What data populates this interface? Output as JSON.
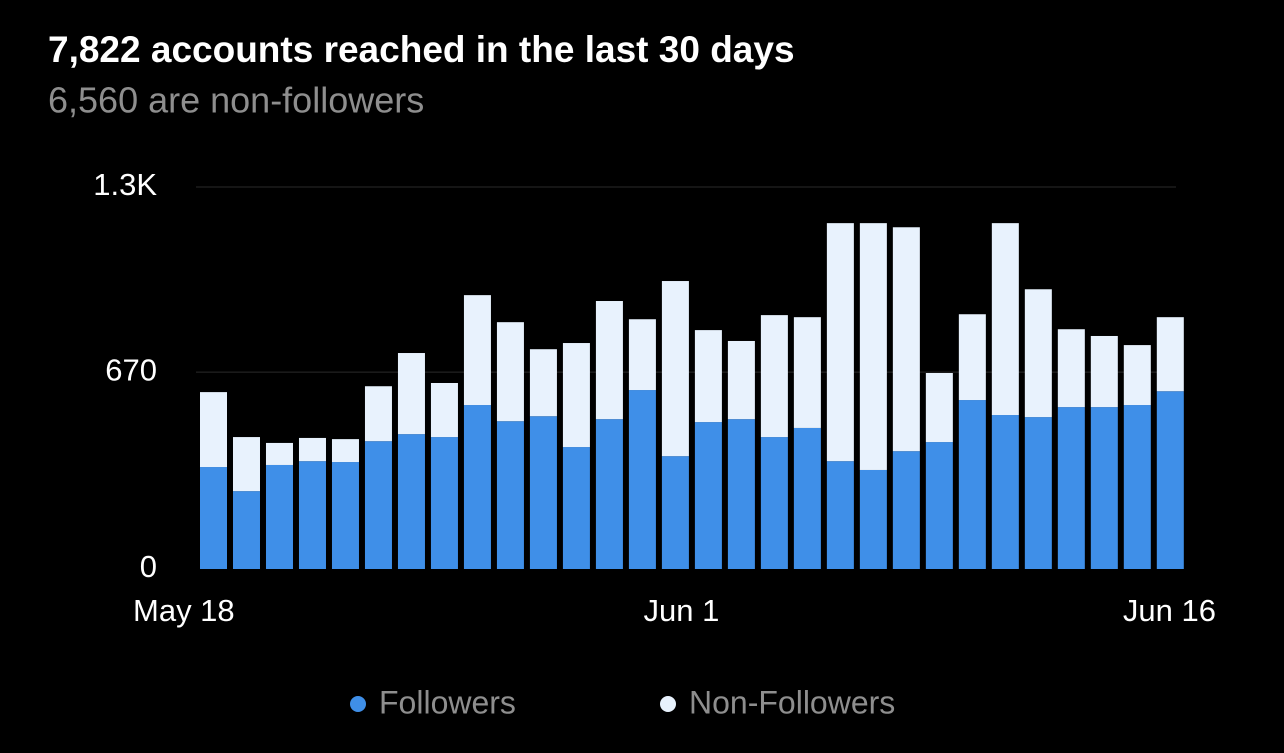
{
  "chart_data": {
    "type": "stacked_bar",
    "title": "7,822 accounts reached in the last 30 days",
    "subtitle": "6,560 are non-followers",
    "categories": [
      "May 18",
      null,
      null,
      null,
      null,
      null,
      null,
      null,
      null,
      null,
      null,
      null,
      null,
      null,
      "Jun 1",
      null,
      null,
      null,
      null,
      null,
      null,
      null,
      null,
      null,
      null,
      null,
      null,
      null,
      null,
      "Jun 16"
    ],
    "series": [
      {
        "name": "Followers",
        "color": "#3f8fe8",
        "values": [
          347,
          265,
          354,
          367,
          364,
          435,
          459,
          449,
          558,
          503,
          520,
          415,
          510,
          609,
          384,
          500,
          510,
          449,
          480,
          367,
          337,
          401,
          432,
          575,
          524,
          517,
          551,
          551,
          558,
          605
        ]
      },
      {
        "name": "Non-Followers",
        "color": "#e8f2fd",
        "values": [
          255,
          184,
          75,
          79,
          78,
          187,
          276,
          184,
          374,
          337,
          228,
          354,
          402,
          241,
          596,
          313,
          266,
          415,
          377,
          810,
          840,
          762,
          235,
          292,
          653,
          435,
          265,
          242,
          204,
          252
        ]
      }
    ],
    "ylim": [
      0,
      1300
    ],
    "yticks": [
      0,
      670,
      {
        "value": 1300,
        "label": "1.3K"
      }
    ],
    "grid": true
  }
}
